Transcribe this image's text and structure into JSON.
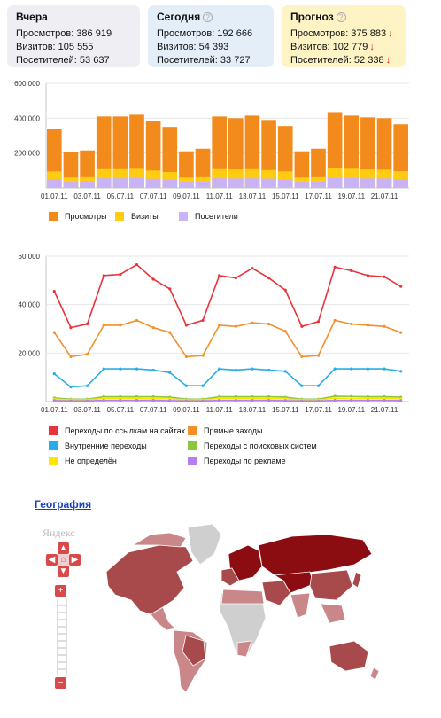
{
  "cards": {
    "yesterday": {
      "title": "Вчера",
      "views": "Просмотров: 386 919",
      "visits": "Визитов: 105 555",
      "visitors": "Посетителей: 53 637"
    },
    "today": {
      "title": "Сегодня",
      "views": "Просмотров: 192 666",
      "visits": "Визитов: 54 393",
      "visitors": "Посетителей: 33 727"
    },
    "forecast": {
      "title": "Прогноз",
      "views": "Просмотров: 375 883",
      "visits": "Визитов: 102 779",
      "visitors": "Посетителей: 52 338",
      "arrow": "↓"
    }
  },
  "chart_data": [
    {
      "type": "bar",
      "categories": [
        "01.07.11",
        "02.07.11",
        "03.07.11",
        "04.07.11",
        "05.07.11",
        "06.07.11",
        "07.07.11",
        "08.07.11",
        "09.07.11",
        "10.07.11",
        "11.07.11",
        "12.07.11",
        "13.07.11",
        "14.07.11",
        "15.07.11",
        "16.07.11",
        "17.07.11",
        "18.07.11",
        "19.07.11",
        "20.07.11",
        "21.07.11",
        "22.07.11"
      ],
      "tick_labels": [
        "600 000",
        "400 000",
        "200 000"
      ],
      "x_tick_labels": [
        "01.07.11",
        "03.07.11",
        "05.07.11",
        "07.07.11",
        "09.07.11",
        "11.07.11",
        "13.07.11",
        "15.07.11",
        "17.07.11",
        "19.07.11",
        "21.07.11"
      ],
      "ylim": [
        0,
        600000
      ],
      "grid": true,
      "legend_position": "bottom",
      "series": [
        {
          "name": "Просмотры",
          "color": "#f28a1c",
          "values": [
            340000,
            205000,
            215000,
            410000,
            410000,
            420000,
            385000,
            350000,
            210000,
            225000,
            410000,
            400000,
            415000,
            390000,
            355000,
            210000,
            225000,
            435000,
            415000,
            405000,
            400000,
            365000
          ]
        },
        {
          "name": "Визиты",
          "color": "#ffcc11",
          "values": [
            95000,
            60000,
            62000,
            108000,
            108000,
            110000,
            100000,
            92000,
            60000,
            62000,
            108000,
            106000,
            108000,
            103000,
            95000,
            60000,
            62000,
            112000,
            110000,
            106000,
            105000,
            96000
          ]
        },
        {
          "name": "Посетители",
          "color": "#c9b3f5",
          "values": [
            50000,
            35000,
            36000,
            55000,
            55000,
            56000,
            52000,
            48000,
            35000,
            36000,
            55000,
            54000,
            55000,
            53000,
            49000,
            35000,
            36000,
            57000,
            56000,
            54000,
            54000,
            50000
          ]
        }
      ]
    },
    {
      "type": "line",
      "categories": [
        "01.07.11",
        "02.07.11",
        "03.07.11",
        "04.07.11",
        "05.07.11",
        "06.07.11",
        "07.07.11",
        "08.07.11",
        "09.07.11",
        "10.07.11",
        "11.07.11",
        "12.07.11",
        "13.07.11",
        "14.07.11",
        "15.07.11",
        "16.07.11",
        "17.07.11",
        "18.07.11",
        "19.07.11",
        "20.07.11",
        "21.07.11",
        "22.07.11"
      ],
      "tick_labels": [
        "60 000",
        "40 000",
        "20 000"
      ],
      "x_tick_labels": [
        "01.07.11",
        "03.07.11",
        "05.07.11",
        "07.07.11",
        "09.07.11",
        "11.07.11",
        "13.07.11",
        "15.07.11",
        "17.07.11",
        "19.07.11",
        "21.07.11"
      ],
      "ylim": [
        0,
        60000
      ],
      "grid": true,
      "legend_position": "bottom",
      "series": [
        {
          "name": "Переходы по ссылкам на сайтах",
          "color": "#e8333a",
          "values": [
            45500,
            30500,
            32000,
            52000,
            52500,
            56500,
            50500,
            46500,
            31500,
            33500,
            52000,
            51000,
            55000,
            51000,
            46000,
            31000,
            33000,
            55500,
            54000,
            52000,
            51500,
            47500
          ]
        },
        {
          "name": "Прямые заходы",
          "color": "#f3902a",
          "values": [
            28500,
            18500,
            19500,
            31500,
            31500,
            33500,
            30500,
            28500,
            18500,
            19000,
            31500,
            31000,
            32500,
            32000,
            29000,
            18500,
            19000,
            33500,
            32000,
            31500,
            31000,
            28500
          ]
        },
        {
          "name": "Внутренние переходы",
          "color": "#27aee6",
          "values": [
            11500,
            6000,
            6500,
            13500,
            13500,
            13500,
            13000,
            12000,
            6500,
            6500,
            13500,
            13000,
            13500,
            13000,
            12500,
            6500,
            6500,
            13500,
            13500,
            13500,
            13500,
            12500
          ]
        },
        {
          "name": "Переходы с поисковых систем",
          "color": "#8cc63f",
          "values": [
            1500,
            1000,
            1000,
            2000,
            2000,
            2000,
            2000,
            1800,
            1000,
            1000,
            2000,
            2000,
            2000,
            2000,
            1800,
            1000,
            1000,
            2200,
            2100,
            2000,
            2000,
            1800
          ]
        },
        {
          "name": "Не определён",
          "color": "#ffe600",
          "values": [
            1000,
            700,
            700,
            1300,
            1300,
            1300,
            1200,
            1100,
            700,
            700,
            1300,
            1300,
            1300,
            1200,
            1100,
            700,
            700,
            1400,
            1300,
            1300,
            1300,
            1100
          ]
        },
        {
          "name": "Переходы по рекламе",
          "color": "#b57ef2",
          "values": [
            400,
            300,
            300,
            500,
            500,
            500,
            500,
            400,
            300,
            300,
            500,
            500,
            500,
            500,
            400,
            300,
            300,
            500,
            500,
            500,
            500,
            400
          ]
        }
      ]
    }
  ],
  "geo": {
    "title": "География",
    "logo": "Яндекс",
    "zoom_plus": "+",
    "zoom_minus": "−",
    "colors": {
      "dark": "#8b0d11",
      "mid": "#a84a4c",
      "light": "#c98789",
      "none": "#cfcfcf"
    }
  }
}
